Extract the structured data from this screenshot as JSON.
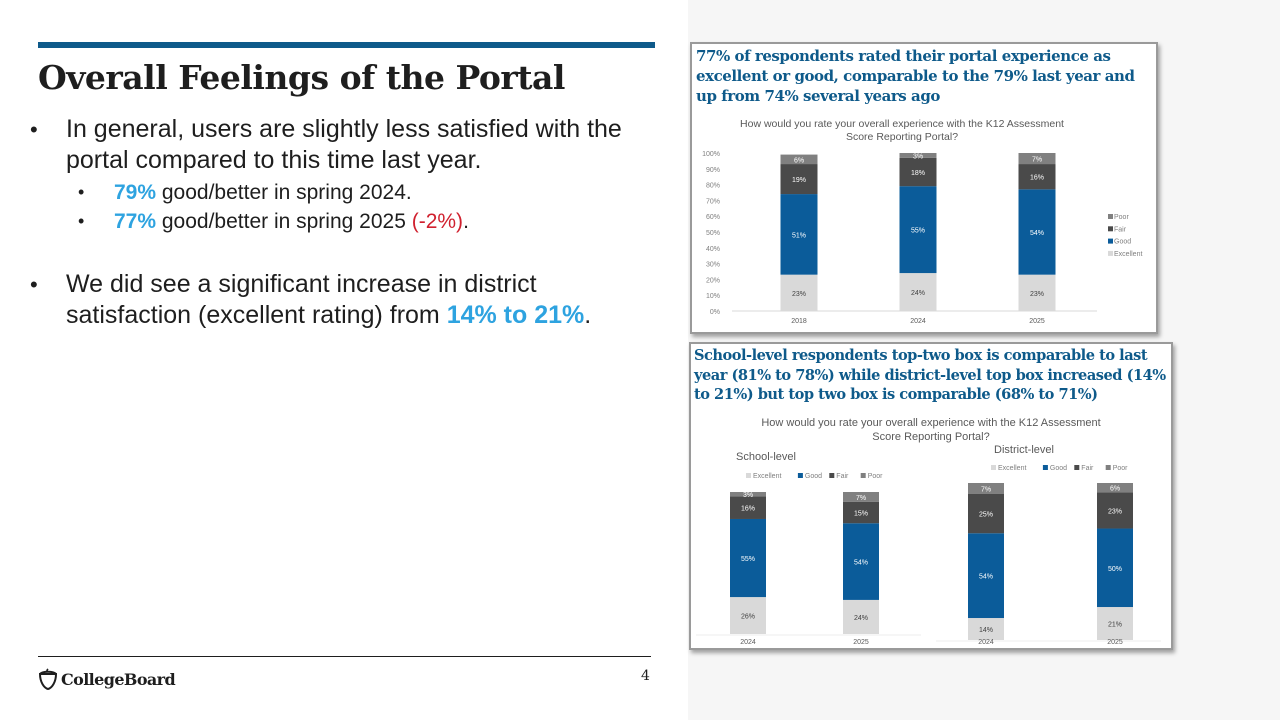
{
  "slide": {
    "title": "Overall Feelings of the Portal",
    "page_number": "4",
    "logo_text": "CollegeBoard",
    "accent_color": "#0e5a8a",
    "highlight_color": "#2ea3e0",
    "negative_color": "#d0202e"
  },
  "bullets": {
    "b1_text": "In general, users are slightly less satisfied with the portal compared to this time last year.",
    "b1_sub1_value": "79%",
    "b1_sub1_text": " good/better in spring 2024.",
    "b1_sub2_value": "77%",
    "b1_sub2_text": " good/better in spring 2025 ",
    "b1_sub2_change": "(-2%)",
    "b1_sub2_end": ".",
    "b2_text": "We did see a significant increase in district satisfaction (excellent rating) from ",
    "b2_value": "14% to 21%",
    "b2_end": ".",
    "bullet_glyph": "•"
  },
  "panels": {
    "overall": {
      "headline": "77% of respondents rated their portal experience as excellent or good, comparable to the 79% last year and up from 74% several years ago"
    },
    "by_level": {
      "headline": "School-level respondents top-two box is comparable to last year (81% to 78%) while district-level top box increased (14% to 21%) but top two box is comparable (68% to 71%)"
    }
  },
  "chart_data": [
    {
      "type": "bar",
      "stacked": true,
      "title": "How would you rate your overall experience with the K12 Assessment Score Reporting Portal?",
      "categories": [
        "2018",
        "2024",
        "2025"
      ],
      "series": [
        {
          "name": "Excellent",
          "color": "#d9d9d9",
          "label_color": "#404040",
          "values": [
            23,
            24,
            23
          ]
        },
        {
          "name": "Good",
          "color": "#0b5c9a",
          "label_color": "#ffffff",
          "values": [
            51,
            55,
            54
          ]
        },
        {
          "name": "Fair",
          "color": "#4a4a4a",
          "label_color": "#ffffff",
          "values": [
            19,
            18,
            16
          ]
        },
        {
          "name": "Poor",
          "color": "#808080",
          "label_color": "#ffffff",
          "values": [
            6,
            3,
            7
          ]
        }
      ],
      "yticks": [
        "0%",
        "10%",
        "20%",
        "30%",
        "40%",
        "50%",
        "60%",
        "70%",
        "80%",
        "90%",
        "100%"
      ],
      "ylim": [
        0,
        100
      ],
      "legend": [
        "Poor",
        "Fair",
        "Good",
        "Excellent"
      ],
      "legend_position": "right",
      "xlabel": "",
      "ylabel": ""
    },
    {
      "type": "bar",
      "stacked": true,
      "title": "How would you rate your overall experience with the K12 Assessment Score Reporting Portal?",
      "groups": [
        {
          "name": "School-level",
          "categories": [
            "2024",
            "2025"
          ],
          "series": [
            {
              "name": "Excellent",
              "color": "#d9d9d9",
              "label_color": "#404040",
              "values": [
                26,
                24
              ]
            },
            {
              "name": "Good",
              "color": "#0b5c9a",
              "label_color": "#ffffff",
              "values": [
                55,
                54
              ]
            },
            {
              "name": "Fair",
              "color": "#4a4a4a",
              "label_color": "#ffffff",
              "values": [
                16,
                15
              ]
            },
            {
              "name": "Poor",
              "color": "#808080",
              "label_color": "#ffffff",
              "values": [
                3,
                7
              ]
            }
          ]
        },
        {
          "name": "District-level",
          "categories": [
            "2024",
            "2025"
          ],
          "series": [
            {
              "name": "Excellent",
              "color": "#d9d9d9",
              "label_color": "#404040",
              "values": [
                14,
                21
              ]
            },
            {
              "name": "Good",
              "color": "#0b5c9a",
              "label_color": "#ffffff",
              "values": [
                54,
                50
              ]
            },
            {
              "name": "Fair",
              "color": "#4a4a4a",
              "label_color": "#ffffff",
              "values": [
                25,
                23
              ]
            },
            {
              "name": "Poor",
              "color": "#808080",
              "label_color": "#ffffff",
              "values": [
                7,
                6
              ]
            }
          ]
        }
      ],
      "legend": [
        "Excellent",
        "Good",
        "Fair",
        "Poor"
      ],
      "legend_position": "top",
      "ylim": [
        0,
        100
      ],
      "xlabel": "",
      "ylabel": ""
    }
  ]
}
